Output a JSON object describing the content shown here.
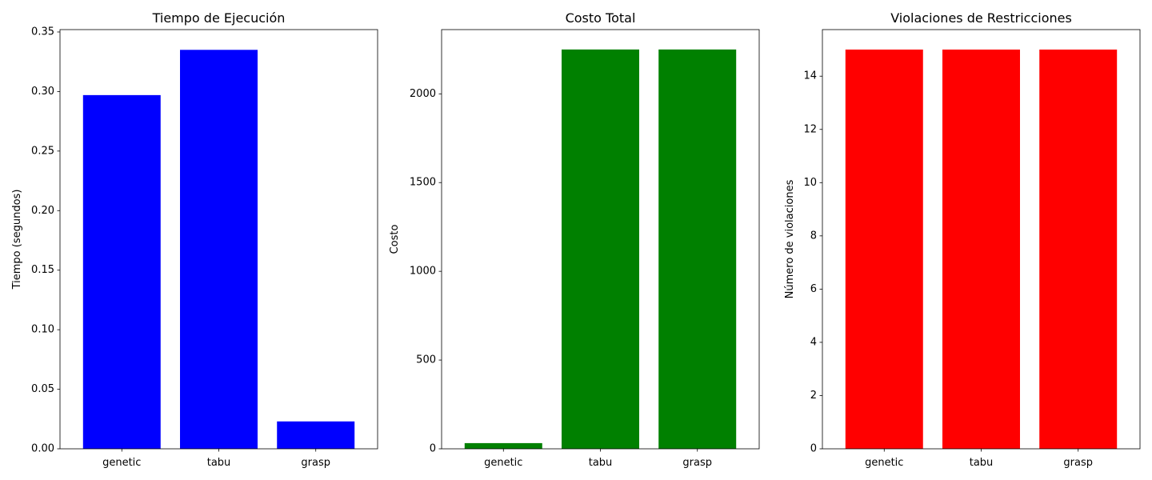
{
  "chart_data": [
    {
      "type": "bar",
      "title": "Tiempo de Ejecución",
      "xlabel": "",
      "ylabel": "Tiempo (segundos)",
      "categories": [
        "genetic",
        "tabu",
        "grasp"
      ],
      "values": [
        0.297,
        0.335,
        0.023
      ],
      "ylim": [
        0,
        0.352
      ],
      "yticks": [
        0.0,
        0.05,
        0.1,
        0.15,
        0.2,
        0.25,
        0.3,
        0.35
      ],
      "ytick_labels": [
        "0.00",
        "0.05",
        "0.10",
        "0.15",
        "0.20",
        "0.25",
        "0.30",
        "0.35"
      ],
      "color": "#0000ff",
      "grid": false
    },
    {
      "type": "bar",
      "title": "Costo Total",
      "xlabel": "",
      "ylabel": "Costo",
      "categories": [
        "genetic",
        "tabu",
        "grasp"
      ],
      "values": [
        32,
        2250,
        2250
      ],
      "ylim": [
        0,
        2362
      ],
      "yticks": [
        0,
        500,
        1000,
        1500,
        2000
      ],
      "ytick_labels": [
        "0",
        "500",
        "1000",
        "1500",
        "2000"
      ],
      "color": "#008000",
      "grid": false
    },
    {
      "type": "bar",
      "title": "Violaciones de Restricciones",
      "xlabel": "",
      "ylabel": "Número de violaciones",
      "categories": [
        "genetic",
        "tabu",
        "grasp"
      ],
      "values": [
        15,
        15,
        15
      ],
      "ylim": [
        0,
        15.75
      ],
      "yticks": [
        0,
        2,
        4,
        6,
        8,
        10,
        12,
        14
      ],
      "ytick_labels": [
        "0",
        "2",
        "4",
        "6",
        "8",
        "10",
        "12",
        "14"
      ],
      "color": "#ff0000",
      "grid": false
    }
  ]
}
